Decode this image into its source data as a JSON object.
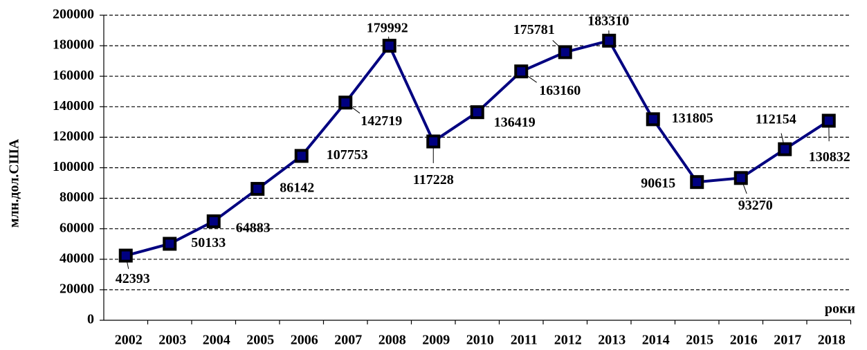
{
  "chart_data": {
    "type": "line",
    "y_label": "млн.дол.США",
    "x_label": "роки",
    "categories": [
      "2002",
      "2003",
      "2004",
      "2005",
      "2006",
      "2007",
      "2008",
      "2009",
      "2010",
      "2011",
      "2012",
      "2013",
      "2014",
      "2015",
      "2016",
      "2017",
      "2018"
    ],
    "series": [
      {
        "name": "",
        "color": "#000080",
        "values": [
          42393,
          50133,
          64883,
          86142,
          107753,
          142719,
          179992,
          117228,
          136419,
          163160,
          175781,
          183310,
          131805,
          90615,
          93270,
          112154,
          130832
        ]
      }
    ],
    "ylim": [
      0,
      200000
    ],
    "yticks": [
      0,
      20000,
      40000,
      60000,
      80000,
      100000,
      120000,
      140000,
      160000,
      180000,
      200000
    ],
    "grid": true
  }
}
